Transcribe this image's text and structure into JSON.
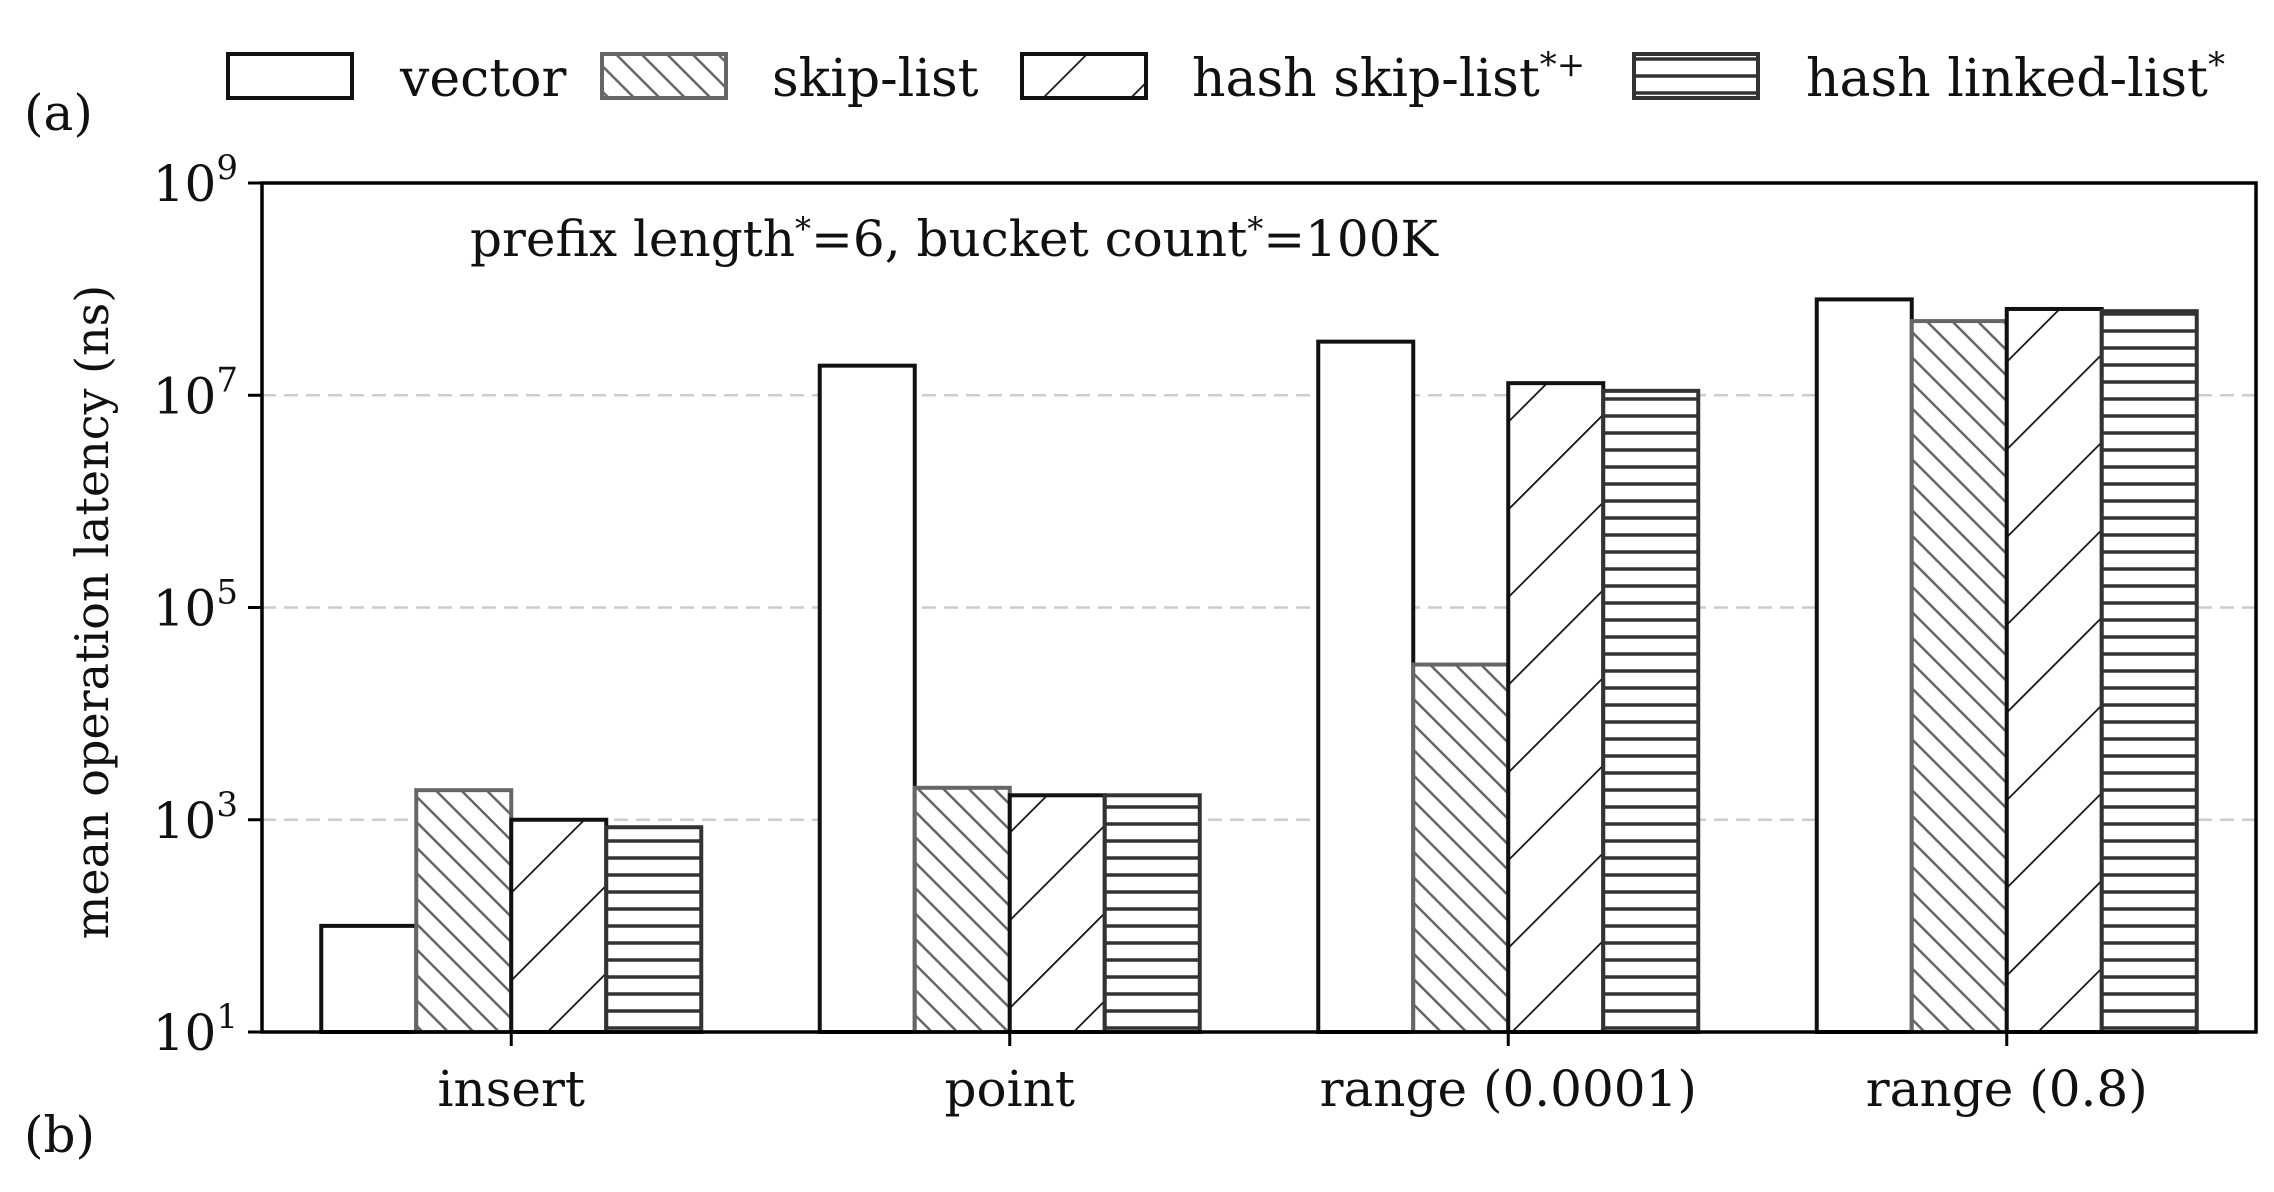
{
  "panel_labels": {
    "top": "(a)",
    "bottom": "(b)"
  },
  "legend": {
    "items": [
      {
        "label": "vector",
        "pattern": "none"
      },
      {
        "label": "skip-list",
        "pattern": "backslash"
      },
      {
        "label": "hash skip-list",
        "superscript": "*+",
        "pattern": "slash"
      },
      {
        "label": "hash linked-list",
        "superscript": "*",
        "pattern": "horizontal"
      }
    ]
  },
  "annotation": {
    "text_a": "prefix length",
    "sup_a": "*",
    "text_b": "=6, bucket count",
    "sup_b": "*",
    "text_c": "=100K"
  },
  "chart_data": {
    "type": "bar",
    "yscale": "log",
    "ylim": [
      10,
      1000000000
    ],
    "yticks": [
      10,
      1000,
      100000,
      10000000,
      1000000000
    ],
    "ytick_labels": [
      {
        "base": "10",
        "exp": "1"
      },
      {
        "base": "10",
        "exp": "3"
      },
      {
        "base": "10",
        "exp": "5"
      },
      {
        "base": "10",
        "exp": "7"
      },
      {
        "base": "10",
        "exp": "9"
      }
    ],
    "ylabel": "mean operation latency (ns)",
    "xlabel": "",
    "grid": "horizontal-dashed",
    "categories": [
      "insert",
      "point",
      "range (0.0001)",
      "range (0.8)"
    ],
    "series": [
      {
        "name": "vector",
        "values": [
          100,
          19000000,
          32000000,
          80000000
        ]
      },
      {
        "name": "skip-list",
        "values": [
          1900,
          2000,
          29000,
          50000000
        ]
      },
      {
        "name": "hash skip-list*+",
        "values": [
          1000,
          1700,
          13000000,
          65000000
        ]
      },
      {
        "name": "hash linked-list*",
        "values": [
          850,
          1700,
          11000000,
          62000000
        ]
      }
    ],
    "colors": {
      "frame": "#000000",
      "hatch_light": "#666666",
      "hatch_dark": "#222222",
      "grid": "#cccccc"
    }
  }
}
